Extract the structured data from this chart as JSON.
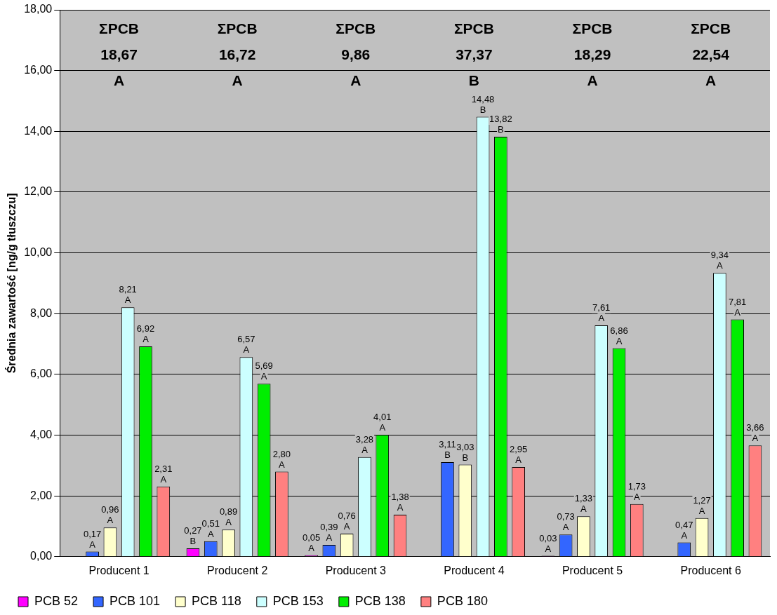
{
  "chart_data": {
    "type": "bar",
    "ylabel": "Średnia zawartość [ng/g tłuszczu]",
    "categories": [
      "Producent 1",
      "Producent 2",
      "Producent 3",
      "Producent 4",
      "Producent 5",
      "Producent 6"
    ],
    "series": [
      {
        "name": "PCB 52",
        "color": "#ff00ff",
        "values": [
          null,
          0.27,
          0.05,
          null,
          0.03,
          null
        ],
        "value_labels": [
          null,
          "0,27\nB",
          "0,05\nA",
          null,
          "0,03\nA",
          null
        ]
      },
      {
        "name": "PCB 101",
        "color": "#3366ff",
        "values": [
          0.17,
          0.51,
          0.39,
          3.11,
          0.73,
          0.47
        ],
        "value_labels": [
          "0,17\nA",
          "0,51\nA",
          "0,39\nA",
          "3,11\nB",
          "0,73\nA",
          "0,47\nA"
        ]
      },
      {
        "name": "PCB 118",
        "color": "#ffffcc",
        "values": [
          0.96,
          0.89,
          0.76,
          3.03,
          1.33,
          1.27
        ],
        "value_labels": [
          "0,96\nA",
          "0,89\nA",
          "0,76\nA",
          "3,03\nB",
          "1,33\nA",
          "1,27\nA"
        ]
      },
      {
        "name": "PCB 153",
        "color": "#ccffff",
        "values": [
          8.21,
          6.57,
          3.28,
          14.48,
          7.61,
          9.34
        ],
        "value_labels": [
          "8,21\nA",
          "6,57\nA",
          "3,28\nA",
          "14,48\nB",
          "7,61\nA",
          "9,34\nA"
        ]
      },
      {
        "name": "PCB 138",
        "color": "#00ee00",
        "values": [
          6.92,
          5.69,
          4.01,
          13.82,
          6.86,
          7.81
        ],
        "value_labels": [
          "6,92\nA",
          "5,69\nA",
          "4,01\nA",
          "13,82\nB",
          "6,86\nA",
          "7,81\nA"
        ]
      },
      {
        "name": "PCB 180",
        "color": "#ff8080",
        "values": [
          2.31,
          2.8,
          1.38,
          2.95,
          1.73,
          3.66
        ],
        "value_labels": [
          "2,31\nA",
          "2,80\nA",
          "1,38\nA",
          "2,95\nA",
          "1,73\nA",
          "3,66\nA"
        ]
      }
    ],
    "ylim": [
      0,
      18
    ],
    "yticks": [
      {
        "value": 0,
        "label": "0,00"
      },
      {
        "value": 2,
        "label": "2,00"
      },
      {
        "value": 4,
        "label": "4,00"
      },
      {
        "value": 6,
        "label": "6,00"
      },
      {
        "value": 8,
        "label": "8,00"
      },
      {
        "value": 10,
        "label": "10,00"
      },
      {
        "value": 12,
        "label": "12,00"
      },
      {
        "value": 14,
        "label": "14,00"
      },
      {
        "value": 16,
        "label": "16,00"
      },
      {
        "value": 18,
        "label": "18,00"
      }
    ],
    "annotations": [
      "ΣPCB\n18,67\nA",
      "ΣPCB\n16,72\nA",
      "ΣPCB\n9,86\nA",
      "ΣPCB\n37,37\nB",
      "ΣPCB\n18,29\nA",
      "ΣPCB\n22,54\nA"
    ],
    "grid": "y",
    "legend": "bottom"
  }
}
